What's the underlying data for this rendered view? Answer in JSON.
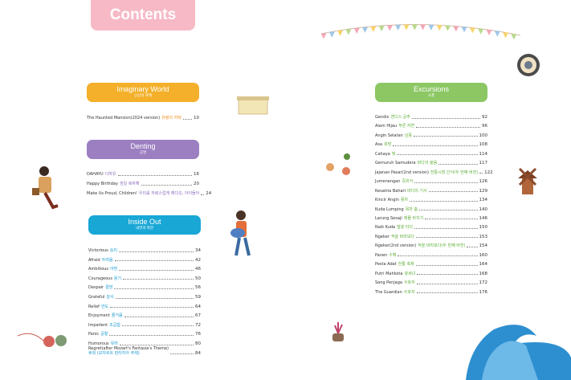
{
  "header": {
    "title": "Contents"
  },
  "sections": [
    {
      "title": "Imaginary World",
      "subtitle": "상상의 세계",
      "entries": [
        {
          "title": "The Haunted Mansion(2024 version)",
          "subtitle": "유령의 저택",
          "page": 10
        }
      ]
    },
    {
      "title": "Denting",
      "subtitle": "공명",
      "entries": [
        {
          "title": "DAHAYU",
          "subtitle": "다하유",
          "page": 16
        },
        {
          "title": "Happy Birthday",
          "subtitle": "생일 축하해",
          "page": 20
        },
        {
          "title": "Make Us Proud, Children!",
          "subtitle": "우리를 자랑스럽게 해다오, 아이들아",
          "page": 24
        }
      ]
    },
    {
      "title": "Inside Out",
      "subtitle": "내면과 외면",
      "entries": [
        {
          "title": "Victorious",
          "subtitle": "승리",
          "page": 34
        },
        {
          "title": "Afraid",
          "subtitle": "두려움",
          "page": 42
        },
        {
          "title": "Ambitious",
          "subtitle": "야망",
          "page": 46
        },
        {
          "title": "Courageous",
          "subtitle": "용기",
          "page": 50
        },
        {
          "title": "Despair",
          "subtitle": "절망",
          "page": 56
        },
        {
          "title": "Grateful",
          "subtitle": "감사",
          "page": 59
        },
        {
          "title": "Relief",
          "subtitle": "안도",
          "page": 64
        },
        {
          "title": "Enjoyment",
          "subtitle": "즐거움",
          "page": 67
        },
        {
          "title": "Impatient",
          "subtitle": "조급함",
          "page": 72
        },
        {
          "title": "Panic",
          "subtitle": "공황",
          "page": 76
        },
        {
          "title": "Humorous",
          "subtitle": "유머",
          "page": 80
        },
        {
          "title": "Regret(after Mozart's Fantasia's Theme)",
          "subtitle": "후회 (모차르트 판타지아 주제)",
          "page": 84
        }
      ]
    },
    {
      "title": "Excursions",
      "subtitle": "소풍",
      "entries": [
        {
          "title": "Gendis",
          "subtitle": "겐디스 공주",
          "page": 92
        },
        {
          "title": "Alam Hijau",
          "subtitle": "푸른 자연",
          "page": 96
        },
        {
          "title": "Angin Selatan",
          "subtitle": "남풍",
          "page": 100
        },
        {
          "title": "Asa",
          "subtitle": "희망",
          "page": 108
        },
        {
          "title": "Cahaya",
          "subtitle": "빛",
          "page": 114
        },
        {
          "title": "Gemuruh Samudera",
          "subtitle": "바다의 울음",
          "page": 117
        },
        {
          "title": "Jajanan Pasar(2nd version)",
          "subtitle": "전통시장 간식(두 번째 버전)",
          "page": 122
        },
        {
          "title": "Jumenengan",
          "subtitle": "즉위식",
          "page": 126
        },
        {
          "title": "Kesatria Bahari",
          "subtitle": "바다의 기사",
          "page": 129
        },
        {
          "title": "Kincir Angin",
          "subtitle": "풍차",
          "page": 134
        },
        {
          "title": "Kuda Lumping",
          "subtitle": "목마 춤",
          "page": 140
        },
        {
          "title": "Larung Sesaji",
          "subtitle": "제물 바치기",
          "page": 146
        },
        {
          "title": "Naik Kuda",
          "subtitle": "말을 타다",
          "page": 150
        },
        {
          "title": "Ngeker",
          "subtitle": "적을 바라보다",
          "page": 153
        },
        {
          "title": "Ngeker(2nd version)",
          "subtitle": "적을 바라보다(두 번째 버전)",
          "page": 154
        },
        {
          "title": "Panen",
          "subtitle": "수확",
          "page": 160
        },
        {
          "title": "Pesta Adat",
          "subtitle": "전통 축제",
          "page": 164
        },
        {
          "title": "Putri Mahkota",
          "subtitle": "왕세녀",
          "page": 168
        },
        {
          "title": "Sang Penjaga",
          "subtitle": "수호자",
          "page": 172
        },
        {
          "title": "The Guardian",
          "subtitle": "수호자",
          "page": 176
        }
      ]
    }
  ]
}
